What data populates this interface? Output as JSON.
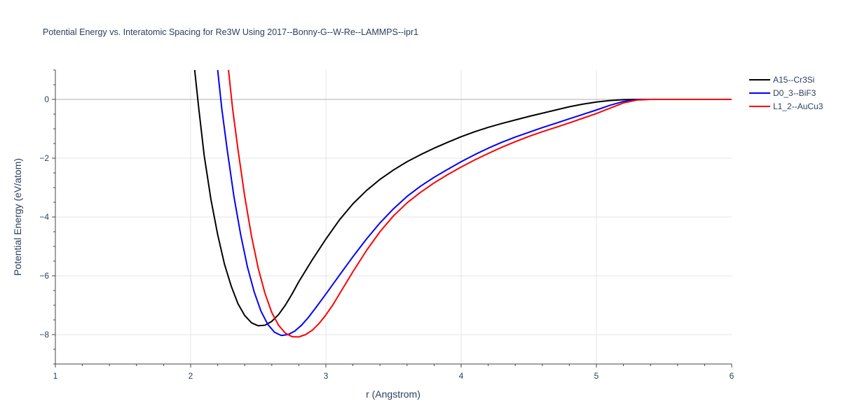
{
  "chart_data": {
    "type": "line",
    "title": "Potential Energy vs. Interatomic Spacing for Re3W Using 2017--Bonny-G--W-Re--LAMMPS--ipr1",
    "xlabel": "r (Angstrom)",
    "ylabel": "Potential Energy (eV/atom)",
    "xlim": [
      1,
      6
    ],
    "ylim": [
      -9,
      1
    ],
    "xticks": [
      1,
      2,
      3,
      4,
      5,
      6
    ],
    "yticks": [
      0,
      -2,
      -4,
      -6,
      -8
    ],
    "xtick_labels": [
      "1",
      "2",
      "3",
      "4",
      "5",
      "6"
    ],
    "ytick_labels": [
      "0",
      "−2",
      "−4",
      "−6",
      "−8"
    ],
    "grid": true,
    "legend_position": "top-right",
    "series": [
      {
        "name": "A15--Cr3Si",
        "color": "#000000",
        "points": [
          [
            2.03,
            1.0
          ],
          [
            2.06,
            -0.3
          ],
          [
            2.1,
            -1.9
          ],
          [
            2.15,
            -3.4
          ],
          [
            2.2,
            -4.6
          ],
          [
            2.25,
            -5.6
          ],
          [
            2.3,
            -6.35
          ],
          [
            2.35,
            -6.95
          ],
          [
            2.4,
            -7.35
          ],
          [
            2.45,
            -7.6
          ],
          [
            2.5,
            -7.7
          ],
          [
            2.55,
            -7.68
          ],
          [
            2.6,
            -7.55
          ],
          [
            2.65,
            -7.32
          ],
          [
            2.7,
            -7.0
          ],
          [
            2.75,
            -6.62
          ],
          [
            2.8,
            -6.2
          ],
          [
            2.9,
            -5.45
          ],
          [
            3.0,
            -4.75
          ],
          [
            3.1,
            -4.1
          ],
          [
            3.2,
            -3.55
          ],
          [
            3.3,
            -3.1
          ],
          [
            3.4,
            -2.72
          ],
          [
            3.5,
            -2.4
          ],
          [
            3.6,
            -2.12
          ],
          [
            3.7,
            -1.88
          ],
          [
            3.8,
            -1.66
          ],
          [
            3.9,
            -1.46
          ],
          [
            4.0,
            -1.27
          ],
          [
            4.1,
            -1.1
          ],
          [
            4.2,
            -0.95
          ],
          [
            4.3,
            -0.82
          ],
          [
            4.4,
            -0.7
          ],
          [
            4.5,
            -0.58
          ],
          [
            4.6,
            -0.47
          ],
          [
            4.7,
            -0.36
          ],
          [
            4.8,
            -0.25
          ],
          [
            4.9,
            -0.16
          ],
          [
            5.0,
            -0.09
          ],
          [
            5.1,
            -0.04
          ],
          [
            5.2,
            -0.01
          ],
          [
            5.3,
            0.0
          ],
          [
            6.0,
            0.0
          ]
        ]
      },
      {
        "name": "D0_3--BiF3",
        "color": "#0000ff",
        "points": [
          [
            2.2,
            1.0
          ],
          [
            2.23,
            -0.3
          ],
          [
            2.27,
            -1.7
          ],
          [
            2.32,
            -3.3
          ],
          [
            2.37,
            -4.6
          ],
          [
            2.42,
            -5.7
          ],
          [
            2.47,
            -6.55
          ],
          [
            2.52,
            -7.2
          ],
          [
            2.57,
            -7.65
          ],
          [
            2.62,
            -7.92
          ],
          [
            2.67,
            -8.03
          ],
          [
            2.72,
            -8.0
          ],
          [
            2.77,
            -7.88
          ],
          [
            2.82,
            -7.68
          ],
          [
            2.87,
            -7.42
          ],
          [
            2.92,
            -7.12
          ],
          [
            3.0,
            -6.62
          ],
          [
            3.1,
            -5.98
          ],
          [
            3.2,
            -5.35
          ],
          [
            3.3,
            -4.75
          ],
          [
            3.4,
            -4.2
          ],
          [
            3.5,
            -3.72
          ],
          [
            3.6,
            -3.3
          ],
          [
            3.7,
            -2.95
          ],
          [
            3.8,
            -2.65
          ],
          [
            3.9,
            -2.38
          ],
          [
            4.0,
            -2.12
          ],
          [
            4.1,
            -1.88
          ],
          [
            4.2,
            -1.66
          ],
          [
            4.3,
            -1.46
          ],
          [
            4.4,
            -1.28
          ],
          [
            4.5,
            -1.12
          ],
          [
            4.6,
            -0.96
          ],
          [
            4.7,
            -0.81
          ],
          [
            4.8,
            -0.66
          ],
          [
            4.9,
            -0.51
          ],
          [
            5.0,
            -0.36
          ],
          [
            5.1,
            -0.2
          ],
          [
            5.2,
            -0.07
          ],
          [
            5.3,
            -0.01
          ],
          [
            5.4,
            0.0
          ],
          [
            6.0,
            0.0
          ]
        ]
      },
      {
        "name": "L1_2--AuCu3",
        "color": "#ff0000",
        "points": [
          [
            2.28,
            1.0
          ],
          [
            2.31,
            -0.3
          ],
          [
            2.35,
            -1.7
          ],
          [
            2.4,
            -3.3
          ],
          [
            2.45,
            -4.65
          ],
          [
            2.5,
            -5.75
          ],
          [
            2.55,
            -6.6
          ],
          [
            2.6,
            -7.25
          ],
          [
            2.65,
            -7.68
          ],
          [
            2.7,
            -7.95
          ],
          [
            2.75,
            -8.07
          ],
          [
            2.8,
            -8.08
          ],
          [
            2.85,
            -8.0
          ],
          [
            2.9,
            -7.85
          ],
          [
            2.95,
            -7.62
          ],
          [
            3.0,
            -7.33
          ],
          [
            3.05,
            -7.0
          ],
          [
            3.1,
            -6.62
          ],
          [
            3.2,
            -5.86
          ],
          [
            3.3,
            -5.14
          ],
          [
            3.4,
            -4.5
          ],
          [
            3.5,
            -3.96
          ],
          [
            3.6,
            -3.52
          ],
          [
            3.7,
            -3.16
          ],
          [
            3.8,
            -2.84
          ],
          [
            3.9,
            -2.56
          ],
          [
            4.0,
            -2.3
          ],
          [
            4.1,
            -2.06
          ],
          [
            4.2,
            -1.84
          ],
          [
            4.3,
            -1.63
          ],
          [
            4.4,
            -1.44
          ],
          [
            4.5,
            -1.26
          ],
          [
            4.6,
            -1.1
          ],
          [
            4.7,
            -0.95
          ],
          [
            4.8,
            -0.8
          ],
          [
            4.9,
            -0.64
          ],
          [
            5.0,
            -0.48
          ],
          [
            5.1,
            -0.3
          ],
          [
            5.2,
            -0.12
          ],
          [
            5.3,
            -0.02
          ],
          [
            5.4,
            0.0
          ],
          [
            6.0,
            0.0
          ]
        ]
      }
    ]
  }
}
